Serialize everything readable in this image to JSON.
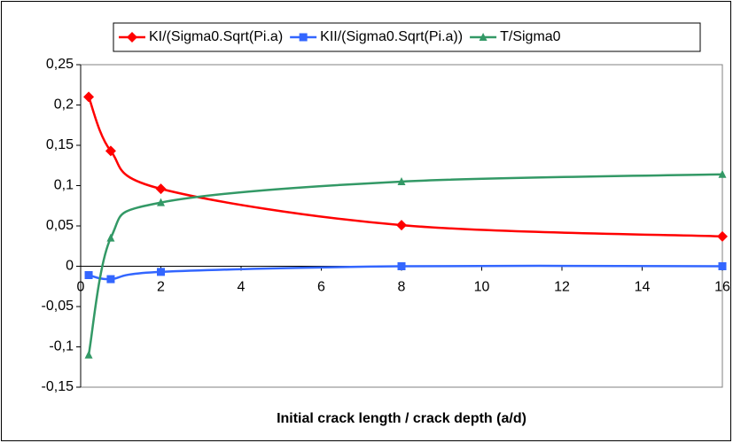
{
  "chart_data": {
    "type": "line",
    "x_label": "Initial crack length / crack depth (a/d)",
    "x": [
      0.2,
      0.75,
      2,
      8,
      16
    ],
    "series": [
      {
        "name": "KI/(Sigma0.Sqrt(Pi.a)",
        "color": "#ff0000",
        "marker": "diamond",
        "values": [
          0.21,
          0.143,
          0.096,
          0.051,
          0.037
        ]
      },
      {
        "name": "KII/(Sigma0.Sqrt(Pi.a))",
        "color": "#3366ff",
        "marker": "square",
        "values": [
          -0.011,
          -0.016,
          -0.007,
          0,
          0
        ]
      },
      {
        "name": "T/Sigma0",
        "color": "#339966",
        "marker": "triangle",
        "values": [
          -0.11,
          0.035,
          0.079,
          0.105,
          0.114
        ]
      }
    ],
    "xlim": [
      0,
      16
    ],
    "xticks": [
      0,
      2,
      4,
      6,
      8,
      10,
      12,
      14,
      16
    ],
    "ylim": [
      -0.15,
      0.25
    ],
    "yticks": [
      {
        "value": -0.15,
        "label": "-0,15"
      },
      {
        "value": -0.1,
        "label": "-0,1"
      },
      {
        "value": -0.05,
        "label": "-0,05"
      },
      0,
      {
        "value": 0.05,
        "label": "0,05"
      },
      {
        "value": 0.1,
        "label": "0,1"
      },
      {
        "value": 0.15,
        "label": "0,15"
      },
      {
        "value": 0.2,
        "label": "0,2"
      },
      {
        "value": 0.25,
        "label": "0,25"
      }
    ],
    "grid": false,
    "legend": "top"
  }
}
